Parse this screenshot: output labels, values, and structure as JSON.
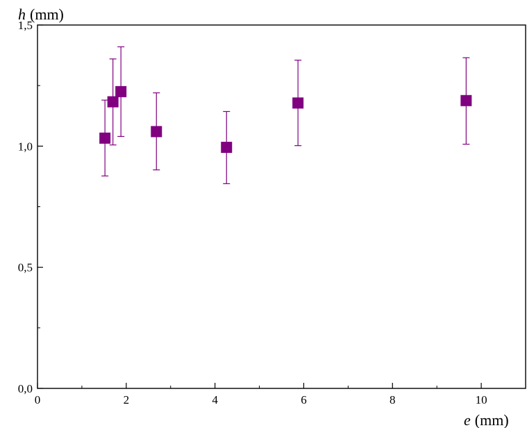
{
  "chart_data": {
    "type": "scatter",
    "xlabel_var": "e",
    "xlabel_unit": "(mm)",
    "ylabel_var": "h",
    "ylabel_unit": "(mm)",
    "xlim": [
      0,
      11
    ],
    "ylim": [
      0,
      1.5
    ],
    "x_ticks": [
      {
        "value": 0,
        "label": "0"
      },
      {
        "value": 2,
        "label": "2"
      },
      {
        "value": 4,
        "label": "4"
      },
      {
        "value": 6,
        "label": "6"
      },
      {
        "value": 8,
        "label": "8"
      },
      {
        "value": 10,
        "label": "10"
      }
    ],
    "y_ticks": [
      {
        "value": 0,
        "label": "0,0"
      },
      {
        "value": 0.5,
        "label": "0,5"
      },
      {
        "value": 1.0,
        "label": "1,0"
      },
      {
        "value": 1.5,
        "label": "1,5"
      }
    ],
    "x_minor_ticks": [
      1,
      3,
      5,
      7,
      9,
      11
    ],
    "y_minor_ticks": [
      0.25,
      0.75,
      1.25
    ],
    "grid": false,
    "marker": "square",
    "color": "#800080",
    "points": [
      {
        "x": 1.52,
        "y": 1.033,
        "err_low": 0.877,
        "err_high": 1.19
      },
      {
        "x": 1.7,
        "y": 1.183,
        "err_low": 1.005,
        "err_high": 1.36
      },
      {
        "x": 1.88,
        "y": 1.225,
        "err_low": 1.04,
        "err_high": 1.41
      },
      {
        "x": 2.68,
        "y": 1.06,
        "err_low": 0.902,
        "err_high": 1.22
      },
      {
        "x": 4.26,
        "y": 0.995,
        "err_low": 0.845,
        "err_high": 1.143
      },
      {
        "x": 5.87,
        "y": 1.178,
        "err_low": 1.002,
        "err_high": 1.355
      },
      {
        "x": 9.66,
        "y": 1.188,
        "err_low": 1.008,
        "err_high": 1.365
      }
    ]
  }
}
